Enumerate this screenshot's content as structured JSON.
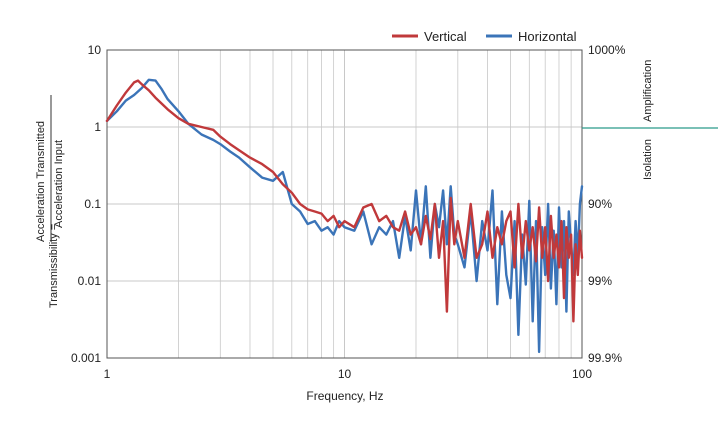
{
  "chart_data": {
    "type": "line",
    "xscale": "log",
    "yscale": "log",
    "xlim": [
      1,
      100
    ],
    "ylim": [
      0.001,
      10
    ],
    "grid": true,
    "legend_placement": "top-right",
    "xlabel": "Frequency, Hz",
    "ylabel_left": "Transmissibility =",
    "ylabel_fraction_numerator": "Acceleration Transmitted",
    "ylabel_fraction_denominator": "Acceleration Input",
    "x_tick_labels": [
      "1",
      "10",
      "100"
    ],
    "y_tick_labels": [
      "10",
      "1",
      "0.1",
      "0.01",
      "0.001"
    ],
    "y_tick_values": [
      10,
      1,
      0.1,
      0.01,
      0.001
    ],
    "right_axis_tick_labels": [
      "1000%",
      "90%",
      "99%",
      "99.9%"
    ],
    "right_axis_tick_positions": [
      10,
      0.1,
      0.01,
      0.001
    ],
    "right_axis_labels": {
      "upper": "Amplification",
      "lower": "Isolation"
    },
    "colors": {
      "vertical": "#c0393b",
      "horizontal": "#3b74b8",
      "divider": "#2a9a8a",
      "grid": "#c8c8c8"
    },
    "series": [
      {
        "name": "Vertical",
        "color": "#c0393b",
        "x": [
          1,
          1.1,
          1.2,
          1.3,
          1.35,
          1.4,
          1.5,
          1.6,
          1.8,
          2,
          2.2,
          2.5,
          2.8,
          3,
          3.3,
          3.6,
          4,
          4.5,
          5,
          5.5,
          6,
          6.5,
          7,
          7.5,
          8,
          8.5,
          9,
          9.5,
          10,
          11,
          12,
          13,
          14,
          15,
          16,
          17,
          18,
          19,
          20,
          21,
          22,
          23,
          24,
          25,
          26,
          27,
          28,
          29,
          30,
          32,
          34,
          36,
          38,
          40,
          42,
          44,
          46,
          48,
          50,
          52,
          54,
          56,
          58,
          60,
          62,
          64,
          66,
          68,
          70,
          72,
          74,
          76,
          78,
          80,
          82,
          84,
          86,
          88,
          90,
          92,
          94,
          96,
          98,
          100
        ],
        "y": [
          1.2,
          1.9,
          2.8,
          3.8,
          4.0,
          3.6,
          3.0,
          2.4,
          1.7,
          1.3,
          1.1,
          1.0,
          0.92,
          0.75,
          0.6,
          0.5,
          0.4,
          0.33,
          0.26,
          0.18,
          0.14,
          0.1,
          0.085,
          0.08,
          0.075,
          0.06,
          0.07,
          0.05,
          0.06,
          0.05,
          0.09,
          0.1,
          0.06,
          0.07,
          0.05,
          0.045,
          0.08,
          0.04,
          0.05,
          0.03,
          0.07,
          0.035,
          0.1,
          0.02,
          0.06,
          0.004,
          0.12,
          0.03,
          0.06,
          0.02,
          0.1,
          0.02,
          0.03,
          0.08,
          0.02,
          0.05,
          0.03,
          0.06,
          0.08,
          0.015,
          0.1,
          0.02,
          0.06,
          0.025,
          0.05,
          0.018,
          0.09,
          0.02,
          0.05,
          0.01,
          0.07,
          0.02,
          0.04,
          0.015,
          0.06,
          0.006,
          0.05,
          0.02,
          0.04,
          0.003,
          0.03,
          0.012,
          0.045,
          0.02
        ]
      },
      {
        "name": "Horizontal",
        "color": "#3b74b8",
        "x": [
          1,
          1.1,
          1.2,
          1.3,
          1.4,
          1.5,
          1.6,
          1.7,
          1.8,
          2,
          2.2,
          2.5,
          2.8,
          3,
          3.3,
          3.6,
          4,
          4.5,
          5,
          5.5,
          6,
          6.5,
          7,
          7.5,
          8,
          8.5,
          9,
          9.5,
          10,
          11,
          12,
          13,
          14,
          15,
          16,
          17,
          18,
          19,
          20,
          21,
          22,
          23,
          24,
          25,
          26,
          27,
          28,
          29,
          30,
          32,
          34,
          36,
          38,
          40,
          42,
          44,
          46,
          48,
          50,
          52,
          54,
          56,
          58,
          60,
          62,
          64,
          66,
          68,
          70,
          72,
          74,
          76,
          78,
          80,
          82,
          84,
          86,
          88,
          90,
          92,
          94,
          96,
          98,
          100
        ],
        "y": [
          1.2,
          1.6,
          2.2,
          2.6,
          3.2,
          4.1,
          4.0,
          3.1,
          2.3,
          1.6,
          1.1,
          0.8,
          0.68,
          0.6,
          0.48,
          0.4,
          0.3,
          0.22,
          0.2,
          0.26,
          0.1,
          0.08,
          0.055,
          0.06,
          0.045,
          0.05,
          0.04,
          0.06,
          0.05,
          0.045,
          0.08,
          0.03,
          0.05,
          0.04,
          0.06,
          0.02,
          0.07,
          0.025,
          0.15,
          0.03,
          0.17,
          0.02,
          0.1,
          0.05,
          0.15,
          0.03,
          0.17,
          0.04,
          0.03,
          0.015,
          0.08,
          0.01,
          0.06,
          0.025,
          0.15,
          0.005,
          0.08,
          0.012,
          0.006,
          0.06,
          0.002,
          0.04,
          0.009,
          0.11,
          0.003,
          0.06,
          0.0012,
          0.05,
          0.012,
          0.1,
          0.008,
          0.045,
          0.005,
          0.09,
          0.015,
          0.06,
          0.004,
          0.08,
          0.03,
          0.012,
          0.06,
          0.02,
          0.1,
          0.17
        ]
      }
    ]
  }
}
